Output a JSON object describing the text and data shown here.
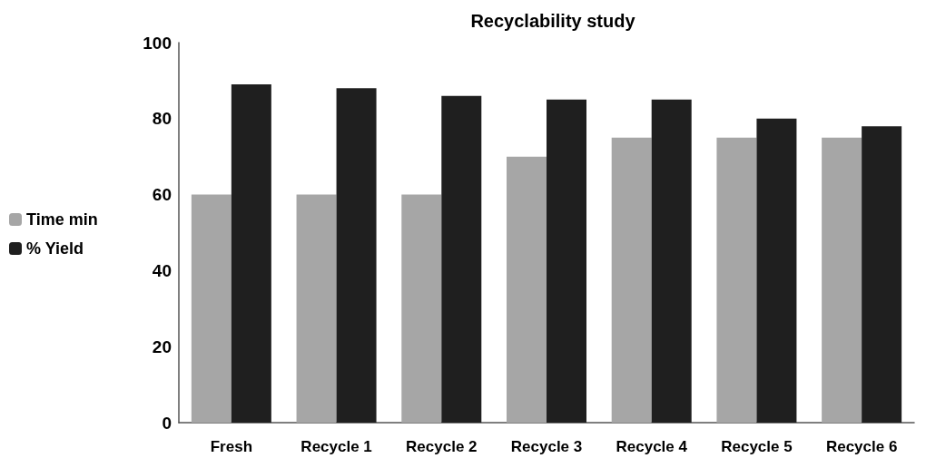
{
  "chart_data": {
    "type": "bar",
    "title": "Recyclability study",
    "categories": [
      "Fresh",
      "Recycle 1",
      "Recycle 2",
      "Recycle 3",
      "Recycle 4",
      "Recycle 5",
      "Recycle 6"
    ],
    "series": [
      {
        "name": "Time min",
        "color": "#a6a6a6",
        "values": [
          60,
          60,
          60,
          70,
          75,
          75,
          75
        ]
      },
      {
        "name": "% Yield",
        "color": "#1f1f1f",
        "values": [
          89,
          88,
          86,
          85,
          85,
          80,
          78
        ]
      }
    ],
    "ylim": [
      0,
      100
    ],
    "yticks": [
      0,
      20,
      40,
      60,
      80,
      100
    ],
    "grid": false,
    "legend": "left"
  }
}
